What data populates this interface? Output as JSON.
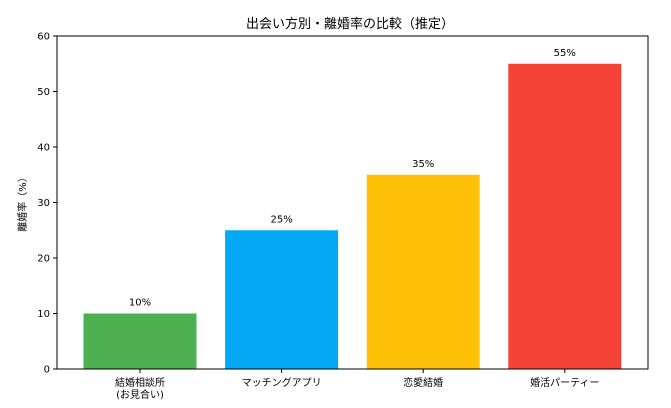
{
  "chart_data": {
    "type": "bar",
    "title": "出会い方別・離婚率の比較（推定）",
    "xlabel": "",
    "ylabel": "離婚率（%）",
    "ylim": [
      0,
      60
    ],
    "yticks": [
      0,
      10,
      20,
      30,
      40,
      50,
      60
    ],
    "categories": [
      [
        "結婚相談所",
        "(お見合い)"
      ],
      [
        "マッチングアプリ"
      ],
      [
        "恋愛結婚"
      ],
      [
        "婚活パーティー"
      ]
    ],
    "values": [
      10,
      25,
      35,
      55
    ],
    "data_labels": [
      "10%",
      "25%",
      "35%",
      "55%"
    ],
    "colors": [
      "#4caf50",
      "#03a9f4",
      "#ffc107",
      "#f44336"
    ],
    "grid": false,
    "legend": "none"
  }
}
